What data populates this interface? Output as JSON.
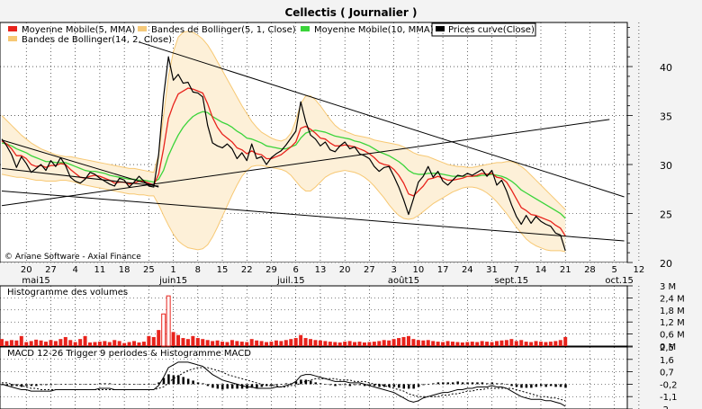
{
  "title": "Cellectis  ( Journalier )",
  "copyright": "© Ariane Software - Axial Finance",
  "colors": {
    "ma5": "#e8231c",
    "bb5": "#f5c97a",
    "ma10": "#3ad43a",
    "price": "#000000",
    "bb14": "#f7c873",
    "bb14_fill": "#fdf0d8",
    "volume": "#e8231c",
    "macd_hist": "#000000"
  },
  "legend": [
    {
      "label": "Moyenne Mobile(5, MMA)",
      "color": "#e8231c"
    },
    {
      "label": "Bandes de Bollinger(5, 1, Close)",
      "color": "#f5c97a"
    },
    {
      "label": "Moyenne Mobile(10, MMA)",
      "color": "#3ad43a"
    },
    {
      "label": "Prices curve(Close)",
      "color": "#000000"
    },
    {
      "label": "Bandes de Bollinger(14, 2, Close)",
      "color": "#f7c873"
    }
  ],
  "chart_data": [
    {
      "type": "line",
      "title": "Cellectis  ( Journalier )",
      "x_tick_labels": [
        "20",
        "27",
        "4",
        "11",
        "18",
        "25",
        "1",
        "8",
        "15",
        "22",
        "29",
        "6",
        "13",
        "20",
        "27",
        "3",
        "10",
        "17",
        "24",
        "31",
        "7",
        "14",
        "21",
        "28",
        "5",
        "12"
      ],
      "month_labels": [
        "mai15",
        "juin15",
        "juil.15",
        "août15",
        "sept.15",
        "oct.15"
      ],
      "ylim": [
        20,
        44
      ],
      "y_ticks": [
        20,
        25,
        30,
        35,
        40
      ],
      "grid": true,
      "series": [
        {
          "name": "Prices curve(Close)",
          "values": [
            32.6,
            31.9,
            31.0,
            29.7,
            30.8,
            30.1,
            29.2,
            29.6,
            30.0,
            29.4,
            30.4,
            29.8,
            30.7,
            29.9,
            28.7,
            28.3,
            28.1,
            28.5,
            29.2,
            29.0,
            28.6,
            28.3,
            28.0,
            27.8,
            28.6,
            28.4,
            27.7,
            28.2,
            28.8,
            28.3,
            27.8,
            27.7,
            31.0,
            36.9,
            41.0,
            38.6,
            39.2,
            38.3,
            38.4,
            37.4,
            37.3,
            36.9,
            34.0,
            32.2,
            31.9,
            31.7,
            32.1,
            31.6,
            30.6,
            31.2,
            30.4,
            32.1,
            30.6,
            30.8,
            30.0,
            30.7,
            31.1,
            31.4,
            32.0,
            32.7,
            33.4,
            36.4,
            34.4,
            33.0,
            32.6,
            31.9,
            32.3,
            31.5,
            31.3,
            31.9,
            32.3,
            31.6,
            31.8,
            31.1,
            30.9,
            30.6,
            29.8,
            29.3,
            29.7,
            29.8,
            28.8,
            27.7,
            26.4,
            24.9,
            26.5,
            28.2,
            28.8,
            29.8,
            28.7,
            29.3,
            28.3,
            27.9,
            28.4,
            28.9,
            28.8,
            29.1,
            28.9,
            29.2,
            29.5,
            28.8,
            29.4,
            27.9,
            28.4,
            27.3,
            25.9,
            24.7,
            23.9,
            24.8,
            24.0,
            24.7,
            24.2,
            23.9,
            23.7,
            23.0,
            22.8,
            21.2
          ]
        },
        {
          "name": "Moyenne Mobile(5, MMA)",
          "values": [
            32.4,
            32.1,
            31.6,
            30.9,
            30.9,
            30.6,
            30.0,
            29.8,
            29.9,
            29.7,
            29.9,
            29.9,
            30.1,
            30.0,
            29.5,
            29.1,
            28.7,
            28.6,
            28.8,
            28.9,
            28.8,
            28.6,
            28.4,
            28.1,
            28.2,
            28.2,
            28.0,
            28.1,
            28.3,
            28.3,
            28.1,
            27.9,
            29.0,
            31.6,
            34.7,
            36.1,
            37.2,
            37.5,
            37.8,
            37.7,
            37.5,
            37.3,
            36.2,
            34.8,
            33.8,
            33.1,
            32.7,
            32.3,
            31.7,
            31.5,
            31.1,
            31.4,
            31.1,
            31.0,
            30.6,
            30.6,
            30.8,
            31.0,
            31.4,
            31.8,
            32.3,
            33.7,
            33.9,
            33.6,
            33.2,
            32.7,
            32.6,
            32.2,
            31.9,
            31.9,
            32.0,
            31.9,
            31.8,
            31.6,
            31.4,
            31.1,
            30.7,
            30.2,
            30.0,
            29.9,
            29.5,
            28.9,
            28.1,
            27.0,
            26.8,
            27.3,
            27.8,
            28.5,
            28.6,
            28.8,
            28.6,
            28.4,
            28.4,
            28.5,
            28.6,
            28.8,
            28.8,
            28.9,
            29.1,
            29.0,
            29.1,
            28.7,
            28.6,
            28.2,
            27.4,
            26.5,
            25.6,
            25.3,
            24.9,
            24.8,
            24.6,
            24.4,
            24.2,
            23.8,
            23.5,
            22.7
          ]
        },
        {
          "name": "Moyenne Mobile(10, MMA)",
          "values": [
            32.2,
            32.1,
            31.9,
            31.6,
            31.4,
            31.2,
            30.9,
            30.7,
            30.5,
            30.3,
            30.3,
            30.2,
            30.2,
            30.2,
            30.0,
            29.8,
            29.6,
            29.4,
            29.3,
            29.3,
            29.2,
            29.1,
            28.9,
            28.8,
            28.7,
            28.6,
            28.5,
            28.5,
            28.4,
            28.4,
            28.3,
            28.2,
            28.5,
            29.4,
            30.9,
            32.0,
            33.0,
            33.8,
            34.4,
            34.9,
            35.2,
            35.4,
            35.3,
            34.9,
            34.6,
            34.3,
            34.1,
            33.8,
            33.4,
            33.1,
            32.7,
            32.6,
            32.4,
            32.2,
            31.9,
            31.8,
            31.7,
            31.6,
            31.6,
            31.8,
            32.0,
            32.7,
            33.2,
            33.4,
            33.5,
            33.4,
            33.3,
            33.1,
            32.9,
            32.8,
            32.7,
            32.6,
            32.4,
            32.3,
            32.1,
            31.9,
            31.6,
            31.3,
            31.1,
            30.9,
            30.6,
            30.3,
            29.9,
            29.4,
            29.1,
            29.0,
            29.0,
            29.1,
            29.1,
            29.1,
            29.0,
            28.9,
            28.8,
            28.8,
            28.8,
            28.8,
            28.8,
            28.8,
            28.9,
            28.9,
            29.0,
            28.9,
            28.8,
            28.6,
            28.3,
            27.9,
            27.4,
            27.1,
            26.8,
            26.5,
            26.2,
            25.9,
            25.6,
            25.3,
            25.0,
            24.5
          ]
        }
      ],
      "bollinger_14_2": {
        "upper": [
          35.0,
          34.5,
          34.0,
          33.5,
          33.0,
          32.6,
          32.2,
          31.9,
          31.6,
          31.4,
          31.2,
          31.0,
          30.9,
          30.8,
          30.8,
          30.7,
          30.6,
          30.5,
          30.4,
          30.3,
          30.2,
          30.1,
          30.0,
          29.9,
          29.8,
          29.7,
          29.6,
          29.6,
          29.5,
          29.4,
          29.3,
          29.2,
          31.0,
          35.0,
          39.0,
          41.5,
          43.0,
          43.5,
          43.6,
          43.5,
          43.2,
          42.8,
          42.2,
          41.4,
          40.5,
          39.6,
          38.7,
          37.8,
          36.9,
          36.0,
          35.2,
          34.4,
          33.8,
          33.3,
          33.0,
          32.7,
          32.5,
          32.4,
          32.6,
          33.2,
          34.5,
          36.2,
          37.0,
          37.0,
          36.6,
          36.0,
          35.3,
          34.6,
          34.0,
          33.6,
          33.4,
          33.2,
          33.0,
          32.9,
          32.8,
          32.7,
          32.5,
          32.4,
          32.3,
          32.2,
          32.1,
          32.0,
          31.8,
          31.5,
          31.2,
          31.0,
          30.9,
          30.8,
          30.6,
          30.4,
          30.2,
          30.0,
          29.9,
          29.8,
          29.8,
          29.7,
          29.7,
          29.8,
          29.9,
          30.0,
          30.1,
          30.2,
          30.2,
          30.3,
          30.3,
          30.1,
          29.8,
          29.4,
          28.9,
          28.4,
          27.9,
          27.4,
          26.9,
          26.4,
          25.9,
          25.4
        ],
        "lower": [
          29.0,
          28.9,
          28.8,
          28.7,
          28.7,
          28.6,
          28.5,
          28.4,
          28.4,
          28.3,
          28.3,
          28.3,
          28.4,
          28.4,
          28.3,
          28.2,
          28.0,
          27.9,
          27.8,
          27.7,
          27.6,
          27.5,
          27.4,
          27.3,
          27.2,
          27.1,
          27.0,
          27.0,
          26.9,
          26.9,
          26.8,
          26.8,
          25.9,
          24.8,
          23.8,
          22.9,
          22.2,
          21.8,
          21.5,
          21.4,
          21.3,
          21.4,
          21.8,
          22.6,
          23.6,
          24.7,
          25.8,
          26.9,
          27.9,
          28.8,
          29.4,
          29.8,
          29.9,
          29.9,
          29.8,
          29.7,
          29.6,
          29.5,
          29.3,
          28.9,
          28.3,
          27.7,
          27.3,
          27.3,
          27.7,
          28.2,
          28.7,
          29.0,
          29.2,
          29.3,
          29.4,
          29.3,
          29.2,
          29.0,
          28.7,
          28.3,
          27.8,
          27.2,
          26.6,
          25.9,
          25.3,
          24.8,
          24.5,
          24.4,
          24.5,
          24.8,
          25.2,
          25.6,
          26.0,
          26.3,
          26.6,
          26.9,
          27.2,
          27.4,
          27.6,
          27.7,
          27.7,
          27.6,
          27.4,
          27.1,
          26.7,
          26.2,
          25.6,
          25.0,
          24.3,
          23.6,
          23.0,
          22.4,
          22.0,
          21.7,
          21.5,
          21.3,
          21.2,
          21.2,
          21.2,
          21.1
        ]
      },
      "trendlines": [
        {
          "from": [
            0,
            27.3
          ],
          "to": [
            127,
            22.2
          ]
        },
        {
          "from": [
            0,
            29.6
          ],
          "to": [
            32,
            27.8
          ]
        },
        {
          "from": [
            0,
            32.5
          ],
          "to": [
            32,
            27.7
          ]
        },
        {
          "from": [
            28,
            42.5
          ],
          "to": [
            127,
            26.7
          ]
        },
        {
          "from": [
            0,
            25.8
          ],
          "to": [
            124,
            34.6
          ]
        }
      ]
    },
    {
      "type": "bar",
      "title": "Histogramme des volumes",
      "ylim": [
        0,
        3
      ],
      "y_tick_labels": [
        "3 M",
        "2,4 M",
        "1,8 M",
        "1,2 M",
        "0,6 M",
        "0 M"
      ],
      "y_ticks": [
        3,
        2.4,
        1.8,
        1.2,
        0.6,
        0
      ],
      "unit": "M",
      "values": [
        0.35,
        0.25,
        0.3,
        0.28,
        0.5,
        0.2,
        0.25,
        0.32,
        0.28,
        0.22,
        0.3,
        0.25,
        0.35,
        0.45,
        0.3,
        0.2,
        0.35,
        0.5,
        0.18,
        0.2,
        0.22,
        0.25,
        0.2,
        0.3,
        0.25,
        0.15,
        0.2,
        0.25,
        0.18,
        0.22,
        0.5,
        0.45,
        0.8,
        1.6,
        2.5,
        0.7,
        0.55,
        0.4,
        0.35,
        0.5,
        0.4,
        0.35,
        0.3,
        0.25,
        0.28,
        0.22,
        0.2,
        0.3,
        0.25,
        0.22,
        0.2,
        0.35,
        0.28,
        0.25,
        0.2,
        0.22,
        0.28,
        0.25,
        0.3,
        0.35,
        0.4,
        0.55,
        0.4,
        0.35,
        0.3,
        0.28,
        0.25,
        0.22,
        0.2,
        0.18,
        0.22,
        0.25,
        0.2,
        0.22,
        0.18,
        0.2,
        0.22,
        0.25,
        0.3,
        0.28,
        0.35,
        0.4,
        0.45,
        0.5,
        0.35,
        0.3,
        0.28,
        0.3,
        0.25,
        0.22,
        0.2,
        0.25,
        0.22,
        0.2,
        0.18,
        0.2,
        0.22,
        0.2,
        0.25,
        0.22,
        0.2,
        0.25,
        0.28,
        0.3,
        0.35,
        0.25,
        0.3,
        0.22,
        0.2,
        0.25,
        0.22,
        0.2,
        0.22,
        0.25,
        0.3,
        0.45
      ]
    },
    {
      "type": "line",
      "title": "MACD 12-26   Trigger 9 periodes & Histogramme MACD",
      "ylim": [
        -2,
        2.5
      ],
      "y_tick_labels": [
        "2,5",
        "1,6",
        "0,7",
        "-0,2",
        "-1,1",
        "-2"
      ],
      "y_ticks": [
        2.5,
        1.6,
        0.7,
        -0.2,
        -1.1,
        -2
      ],
      "series": [
        {
          "name": "MACD",
          "values": [
            -0.2,
            -0.3,
            -0.4,
            -0.5,
            -0.6,
            -0.6,
            -0.7,
            -0.7,
            -0.7,
            -0.7,
            -0.7,
            -0.6,
            -0.6,
            -0.6,
            -0.6,
            -0.6,
            -0.6,
            -0.6,
            -0.6,
            -0.6,
            -0.5,
            -0.5,
            -0.5,
            -0.6,
            -0.6,
            -0.6,
            -0.6,
            -0.6,
            -0.6,
            -0.6,
            -0.6,
            -0.6,
            -0.3,
            0.3,
            1.0,
            1.2,
            1.4,
            1.4,
            1.4,
            1.3,
            1.2,
            1.1,
            0.8,
            0.5,
            0.3,
            0.1,
            0.0,
            -0.1,
            -0.2,
            -0.3,
            -0.4,
            -0.4,
            -0.5,
            -0.5,
            -0.5,
            -0.5,
            -0.4,
            -0.4,
            -0.3,
            -0.2,
            0.0,
            0.4,
            0.5,
            0.5,
            0.4,
            0.3,
            0.2,
            0.1,
            0.0,
            0.0,
            0.0,
            -0.1,
            -0.1,
            -0.1,
            -0.2,
            -0.3,
            -0.4,
            -0.5,
            -0.6,
            -0.7,
            -0.8,
            -1.0,
            -1.2,
            -1.4,
            -1.5,
            -1.4,
            -1.2,
            -1.1,
            -1.0,
            -0.9,
            -0.8,
            -0.8,
            -0.7,
            -0.6,
            -0.6,
            -0.5,
            -0.5,
            -0.4,
            -0.4,
            -0.4,
            -0.3,
            -0.4,
            -0.4,
            -0.5,
            -0.7,
            -0.9,
            -1.1,
            -1.2,
            -1.3,
            -1.3,
            -1.3,
            -1.4,
            -1.4,
            -1.5,
            -1.6,
            -1.8
          ]
        },
        {
          "name": "Trigger",
          "values": [
            -0.1,
            -0.1,
            -0.2,
            -0.3,
            -0.3,
            -0.4,
            -0.5,
            -0.5,
            -0.6,
            -0.6,
            -0.6,
            -0.6,
            -0.6,
            -0.6,
            -0.6,
            -0.6,
            -0.6,
            -0.6,
            -0.6,
            -0.6,
            -0.6,
            -0.6,
            -0.6,
            -0.6,
            -0.6,
            -0.6,
            -0.6,
            -0.6,
            -0.6,
            -0.6,
            -0.6,
            -0.6,
            -0.5,
            -0.4,
            -0.1,
            0.2,
            0.4,
            0.6,
            0.8,
            0.9,
            1.0,
            1.0,
            1.0,
            0.9,
            0.8,
            0.7,
            0.5,
            0.4,
            0.3,
            0.2,
            0.1,
            0.0,
            -0.1,
            -0.2,
            -0.3,
            -0.3,
            -0.3,
            -0.4,
            -0.4,
            -0.3,
            -0.3,
            -0.1,
            0.0,
            0.1,
            0.2,
            0.2,
            0.2,
            0.2,
            0.2,
            0.1,
            0.1,
            0.1,
            0.0,
            0.0,
            0.0,
            -0.1,
            -0.2,
            -0.2,
            -0.3,
            -0.4,
            -0.5,
            -0.6,
            -0.7,
            -0.9,
            -1.0,
            -1.1,
            -1.1,
            -1.1,
            -1.1,
            -1.1,
            -1.0,
            -1.0,
            -0.9,
            -0.9,
            -0.8,
            -0.7,
            -0.7,
            -0.6,
            -0.6,
            -0.5,
            -0.5,
            -0.5,
            -0.5,
            -0.5,
            -0.5,
            -0.6,
            -0.7,
            -0.8,
            -0.9,
            -1.0,
            -1.1,
            -1.1,
            -1.2,
            -1.2,
            -1.3,
            -1.4
          ]
        }
      ]
    }
  ]
}
